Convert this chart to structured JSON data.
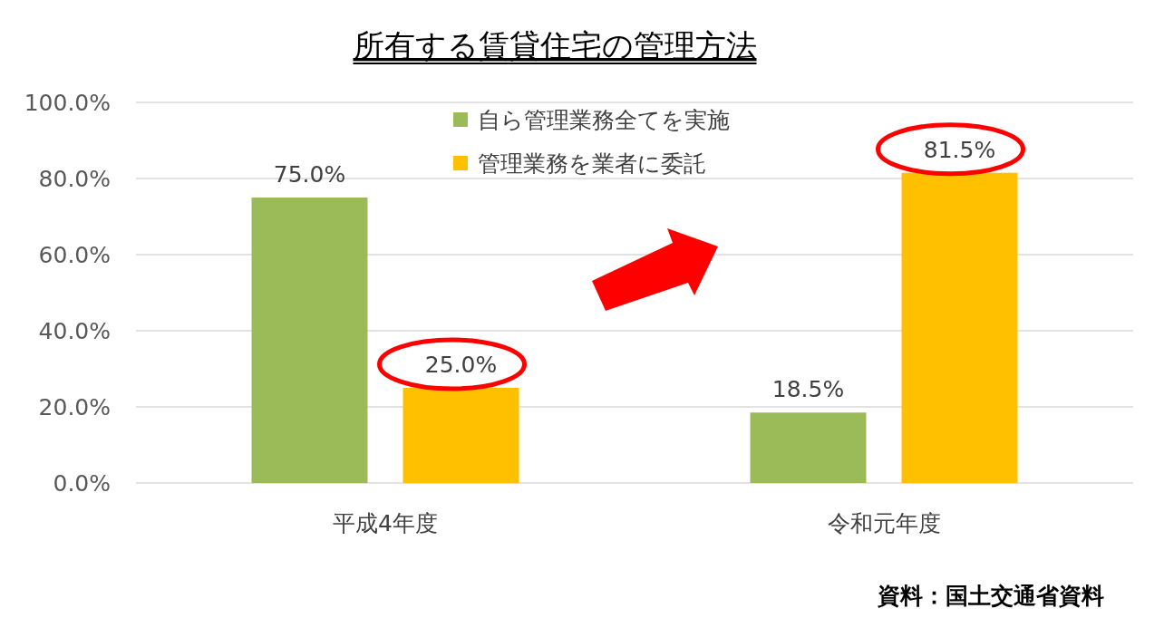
{
  "chart_data": {
    "type": "bar",
    "title": "所有する賃貸住宅の管理方法",
    "categories": [
      "平成4年度",
      "令和元年度"
    ],
    "series": [
      {
        "name": "自ら管理業務全てを実施",
        "color": "#9bbb59",
        "values": [
          75.0,
          18.5
        ],
        "value_labels": [
          "75.0%",
          "18.5%"
        ]
      },
      {
        "name": "管理業務を業者に委託",
        "color": "#ffc000",
        "values": [
          25.0,
          81.5
        ],
        "value_labels": [
          "25.0%",
          "81.5%"
        ]
      }
    ],
    "ylim": [
      0,
      100
    ],
    "yticks": [
      {
        "value": 0,
        "label": "0.0%"
      },
      {
        "value": 20,
        "label": "20.0%"
      },
      {
        "value": 40,
        "label": "40.0%"
      },
      {
        "value": 60,
        "label": "60.0%"
      },
      {
        "value": 80,
        "label": "80.0%"
      },
      {
        "value": 100,
        "label": "100.0%"
      }
    ],
    "grid": "y",
    "legend": "top",
    "annotations": [
      "資料：国土交通省資料"
    ]
  }
}
